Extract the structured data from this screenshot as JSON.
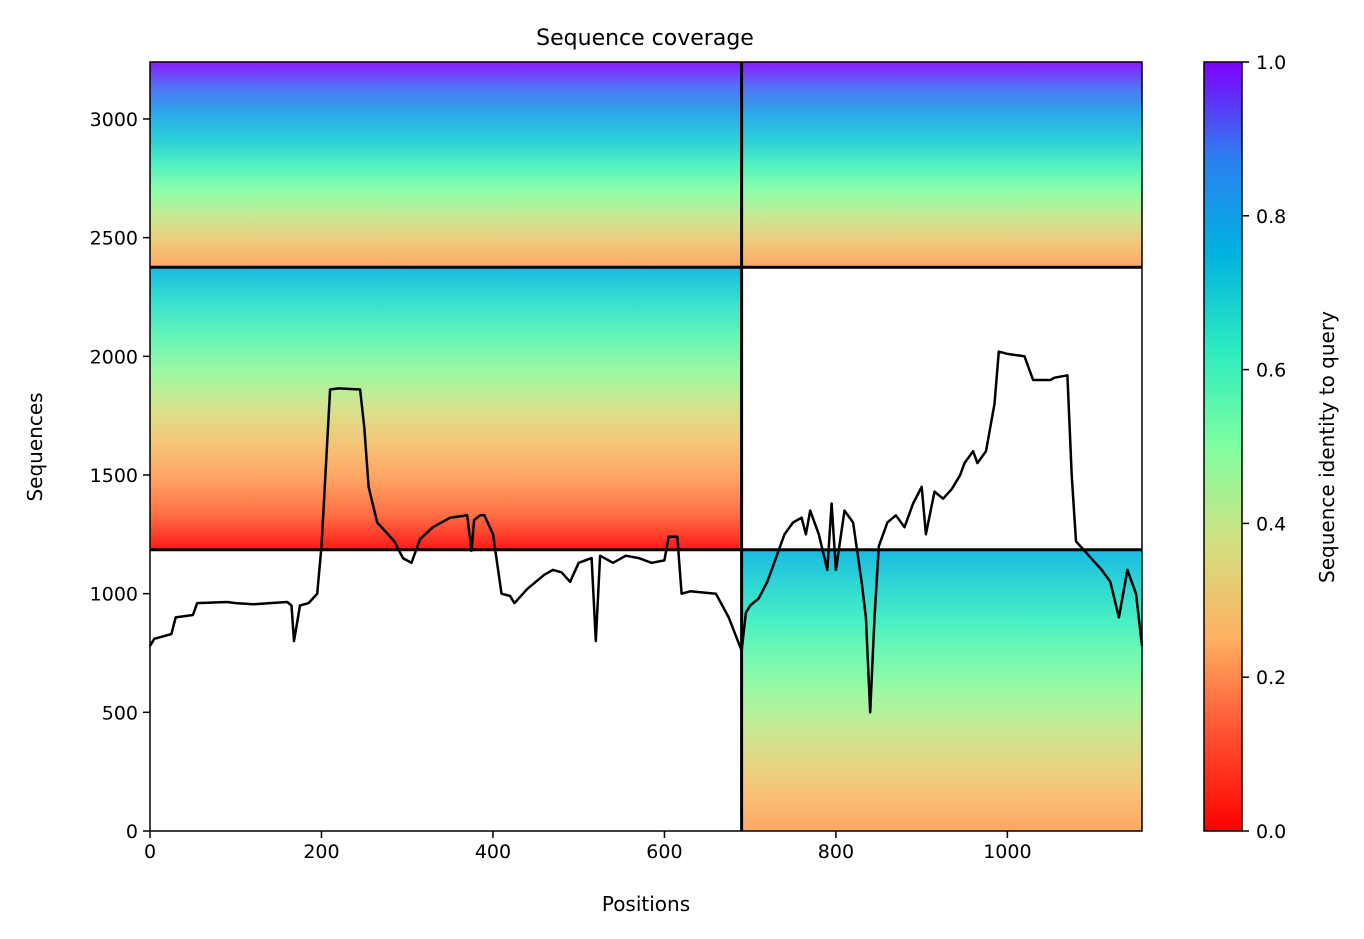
{
  "chart_data": {
    "type": "heatmap",
    "title": "Sequence coverage",
    "xlabel": "Positions",
    "ylabel": "Sequences",
    "xlim": [
      0,
      1157
    ],
    "ylim": [
      0,
      3240
    ],
    "xticks": [
      0,
      200,
      400,
      600,
      800,
      1000
    ],
    "yticks": [
      0,
      500,
      1000,
      1500,
      2000,
      2500,
      3000
    ],
    "colorbar": {
      "label": "Sequence identity to query",
      "range": [
        0.0,
        1.0
      ],
      "ticks": [
        "0.0",
        "0.2",
        "0.4",
        "0.6",
        "0.8",
        "1.0"
      ],
      "colormap": [
        "#ff0000",
        "#ff7f40",
        "#ffb260",
        "#d2e080",
        "#7ffea0",
        "#2cecc0",
        "#00b2e0",
        "#2c7ff0",
        "#7f00ff"
      ]
    },
    "chain_boundaries": {
      "x": [
        690
      ],
      "y": [
        1185,
        2375
      ]
    },
    "blocks": [
      {
        "x": [
          0,
          690
        ],
        "y": [
          2375,
          3240
        ],
        "identity_top": 1.0,
        "identity_bottom": 0.2
      },
      {
        "x": [
          690,
          1157
        ],
        "y": [
          2375,
          3240
        ],
        "identity_top": 1.0,
        "identity_bottom": 0.2
      },
      {
        "x": [
          0,
          690
        ],
        "y": [
          1185,
          2375
        ],
        "identity_top": 0.75,
        "identity_bottom": 0.0
      },
      {
        "x": [
          690,
          1157
        ],
        "y": [
          0,
          1185
        ],
        "identity_top": 0.75,
        "identity_bottom": 0.2
      }
    ],
    "coverage_line": {
      "name": "coverage",
      "x": [
        0,
        5,
        15,
        25,
        30,
        50,
        55,
        90,
        100,
        120,
        140,
        160,
        165,
        168,
        175,
        185,
        195,
        200,
        210,
        220,
        245,
        250,
        255,
        265,
        275,
        285,
        295,
        305,
        315,
        330,
        350,
        370,
        375,
        378,
        385,
        390,
        400,
        410,
        420,
        425,
        435,
        440,
        450,
        460,
        470,
        480,
        490,
        500,
        515,
        520,
        525,
        540,
        555,
        570,
        585,
        600,
        605,
        615,
        620,
        630,
        660,
        675,
        690,
        695,
        700,
        710,
        720,
        730,
        740,
        750,
        760,
        765,
        770,
        780,
        790,
        795,
        800,
        810,
        820,
        830,
        835,
        840,
        845,
        850,
        860,
        870,
        880,
        890,
        900,
        905,
        915,
        925,
        935,
        945,
        950,
        960,
        965,
        975,
        985,
        990,
        1000,
        1020,
        1030,
        1050,
        1055,
        1070,
        1075,
        1080,
        1090,
        1100,
        1110,
        1120,
        1130,
        1140,
        1150,
        1157
      ],
      "y": [
        780,
        810,
        820,
        830,
        900,
        910,
        960,
        965,
        960,
        955,
        960,
        965,
        950,
        800,
        950,
        960,
        1000,
        1200,
        1860,
        1865,
        1860,
        1700,
        1450,
        1300,
        1260,
        1220,
        1150,
        1130,
        1230,
        1280,
        1320,
        1330,
        1180,
        1310,
        1330,
        1330,
        1250,
        1000,
        990,
        960,
        1000,
        1020,
        1050,
        1080,
        1100,
        1090,
        1050,
        1130,
        1150,
        800,
        1160,
        1130,
        1160,
        1150,
        1130,
        1140,
        1240,
        1240,
        1000,
        1010,
        1000,
        900,
        760,
        920,
        950,
        980,
        1050,
        1150,
        1250,
        1300,
        1320,
        1250,
        1350,
        1250,
        1100,
        1380,
        1100,
        1350,
        1300,
        1050,
        900,
        500,
        900,
        1200,
        1300,
        1330,
        1280,
        1380,
        1450,
        1250,
        1430,
        1400,
        1440,
        1500,
        1550,
        1600,
        1550,
        1600,
        1800,
        2020,
        2010,
        2000,
        1900,
        1900,
        1910,
        1920,
        1500,
        1220,
        1180,
        1140,
        1100,
        1050,
        900,
        1100,
        1000,
        780
      ]
    }
  }
}
